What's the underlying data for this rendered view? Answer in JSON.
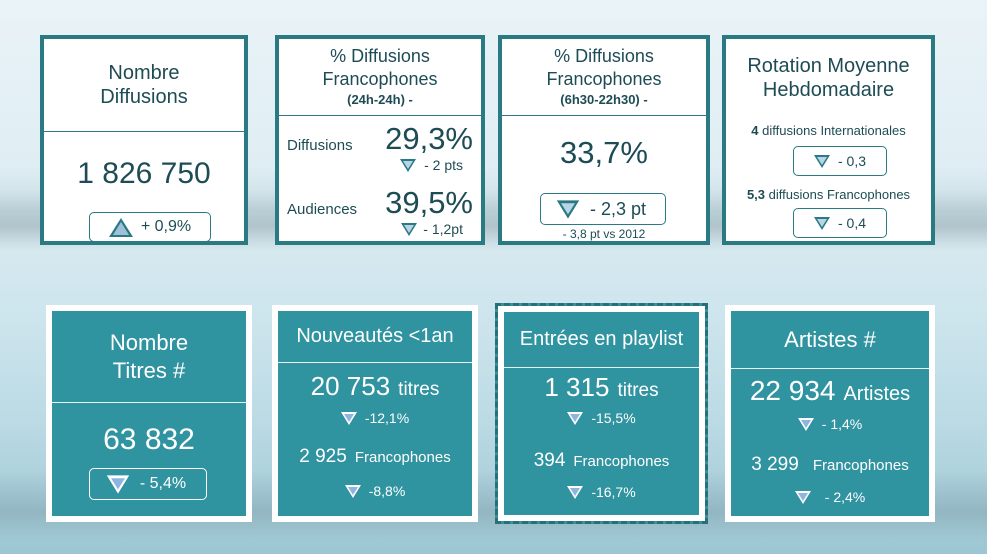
{
  "top": [
    {
      "title": [
        "Nombre",
        "Diffusions"
      ],
      "value": "1 826 750",
      "delta": "+ 0,9%",
      "direction": "up"
    },
    {
      "title": [
        "% Diffusions",
        "Francophones"
      ],
      "subtitle": "(24h-24h) -",
      "rows": [
        {
          "label": "Diffusions",
          "value": "29,3%",
          "delta": "- 2 pts"
        },
        {
          "label": "Audiences",
          "value": "39,5%",
          "delta": "- 1,2pt"
        }
      ]
    },
    {
      "title": [
        "% Diffusions",
        "Francophones"
      ],
      "subtitle": "(6h30-22h30) -",
      "value": "33,7%",
      "delta": "- 2,3 pt",
      "note": "- 3,8 pt vs 2012"
    },
    {
      "title": [
        "Rotation Moyenne",
        "Hebdomadaire"
      ],
      "rows": [
        {
          "count": "4",
          "label": "diffusions Internationales",
          "delta": "- 0,3"
        },
        {
          "count": "5,3",
          "label": "diffusions Francophones",
          "delta": "- 0,4"
        }
      ]
    }
  ],
  "bottom": [
    {
      "title": [
        "Nombre",
        "Titres #"
      ],
      "value": "63 832",
      "delta": "- 5,4%"
    },
    {
      "title": "Nouveautés <1an",
      "main_value": "20 753",
      "main_unit": "titres",
      "main_delta": "-12,1%",
      "sec_value": "2 925",
      "sec_unit": "Francophones",
      "sec_delta": "-8,8%"
    },
    {
      "title": "Entrées en playlist",
      "main_value": "1 315",
      "main_unit": "titres",
      "main_delta": "-15,5%",
      "sec_value": "394",
      "sec_unit": "Francophones",
      "sec_delta": "-16,7%"
    },
    {
      "title": "Artistes #",
      "main_value": "22 934",
      "main_unit": "Artistes",
      "main_delta": "- 1,4%",
      "sec_value": "3 299",
      "sec_unit": "Francophones",
      "sec_delta": "- 2,4%"
    }
  ]
}
